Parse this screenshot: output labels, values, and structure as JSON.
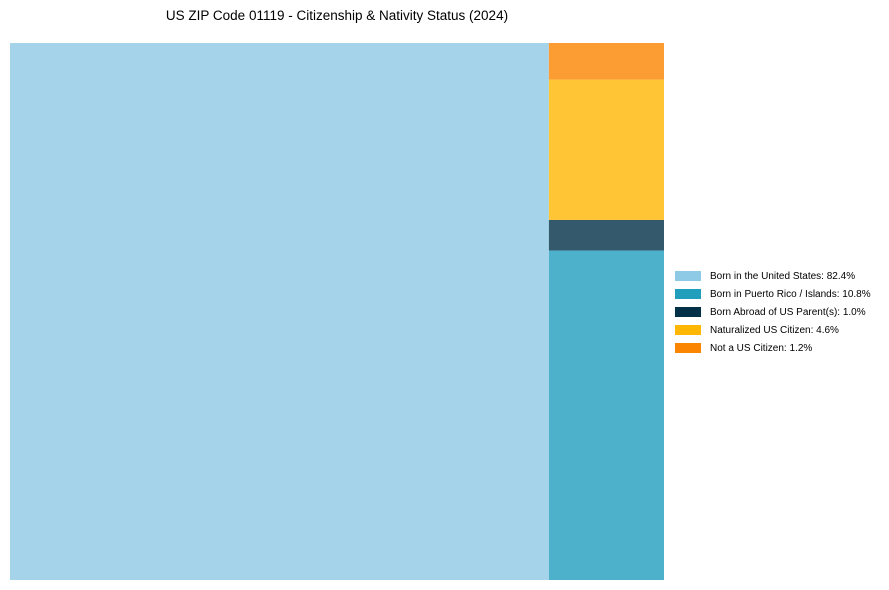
{
  "chart_data": {
    "type": "treemap",
    "title": "US ZIP Code 01119 - Citizenship & Nativity Status (2024)",
    "unit": "%",
    "items": [
      {
        "name": "Born in the United States",
        "value": 82.4,
        "label": "Born in the United States: 82.4%",
        "color": "#8ecae6",
        "tile_color": "#a5d4ea"
      },
      {
        "name": "Born in Puerto Rico / Islands",
        "value": 10.8,
        "label": "Born in Puerto Rico / Islands: 10.8%",
        "color": "#219ebc",
        "tile_color": "#4db1cb"
      },
      {
        "name": "Born Abroad of US Parent(s)",
        "value": 1.0,
        "label": "Born Abroad of US Parent(s): 1.0%",
        "color": "#023047",
        "tile_color": "#35596c"
      },
      {
        "name": "Naturalized US Citizen",
        "value": 4.6,
        "label": "Naturalized US Citizen: 4.6%",
        "color": "#ffb703",
        "tile_color": "#ffc535"
      },
      {
        "name": "Not a US Citizen",
        "value": 1.2,
        "label": "Not a US Citizen: 1.2%",
        "color": "#fb8500",
        "tile_color": "#fc9d33"
      }
    ],
    "legend_position": "right"
  }
}
